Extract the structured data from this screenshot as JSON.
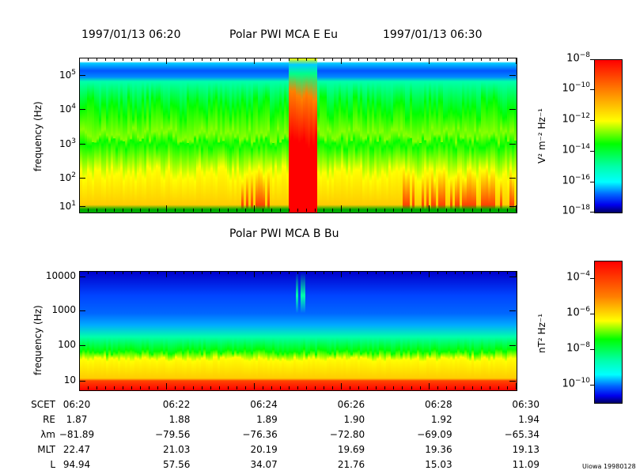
{
  "title": {
    "start": "1997/01/13 06:20",
    "name": "Polar PWI MCA E Eu",
    "end": "1997/01/13 06:30"
  },
  "chart_data": [
    {
      "type": "heatmap",
      "title": "Polar PWI MCA E Eu",
      "ylabel": "frequency (Hz)",
      "yscale": "log",
      "ylim": [
        6,
        300000
      ],
      "yticks": [
        "10",
        "10",
        "10",
        "10",
        "10"
      ],
      "yexp": [
        "5",
        "4",
        "3",
        "2",
        "1"
      ],
      "xlim": [
        "06:20",
        "06:30"
      ],
      "colorbar": {
        "label": "V² m⁻² Hz⁻¹",
        "range": [
          "1e-18",
          "1e-8"
        ],
        "ticks": [
          "10",
          "10",
          "10",
          "10",
          "10",
          "10"
        ],
        "exps": [
          "−8",
          "−10",
          "−12",
          "−14",
          "−16",
          "−18"
        ]
      }
    },
    {
      "type": "heatmap",
      "title": "Polar PWI MCA B Bu",
      "ylabel": "frequency (Hz)",
      "yscale": "log",
      "ylim": [
        6,
        12000
      ],
      "yticks": [
        "10000",
        "1000",
        "100",
        "10"
      ],
      "xlim": [
        "06:20",
        "06:30"
      ],
      "colorbar": {
        "label": "nT² Hz⁻¹",
        "range": [
          "1e-11",
          "1e-3"
        ],
        "ticks": [
          "10",
          "10",
          "10",
          "10"
        ],
        "exps": [
          "−4",
          "−6",
          "−8",
          "−10"
        ]
      }
    }
  ],
  "ephemeris": {
    "rows": [
      {
        "label": "SCET",
        "values": [
          "06:20",
          "06:22",
          "06:24",
          "06:26",
          "06:28",
          "06:30"
        ]
      },
      {
        "label": "RE",
        "values": [
          "1.87",
          "1.88",
          "1.89",
          "1.90",
          "1.92",
          "1.94"
        ]
      },
      {
        "label": "λm",
        "values": [
          "−81.89",
          "−79.56",
          "−76.36",
          "−72.80",
          "−69.09",
          "−65.34"
        ]
      },
      {
        "label": "MLT",
        "values": [
          "22.47",
          "21.03",
          "20.19",
          "19.69",
          "19.36",
          "19.13"
        ]
      },
      {
        "label": "L",
        "values": [
          "94.94",
          "57.56",
          "34.07",
          "21.76",
          "15.03",
          "11.09"
        ]
      }
    ]
  },
  "footer": "Uiowa 19980128"
}
